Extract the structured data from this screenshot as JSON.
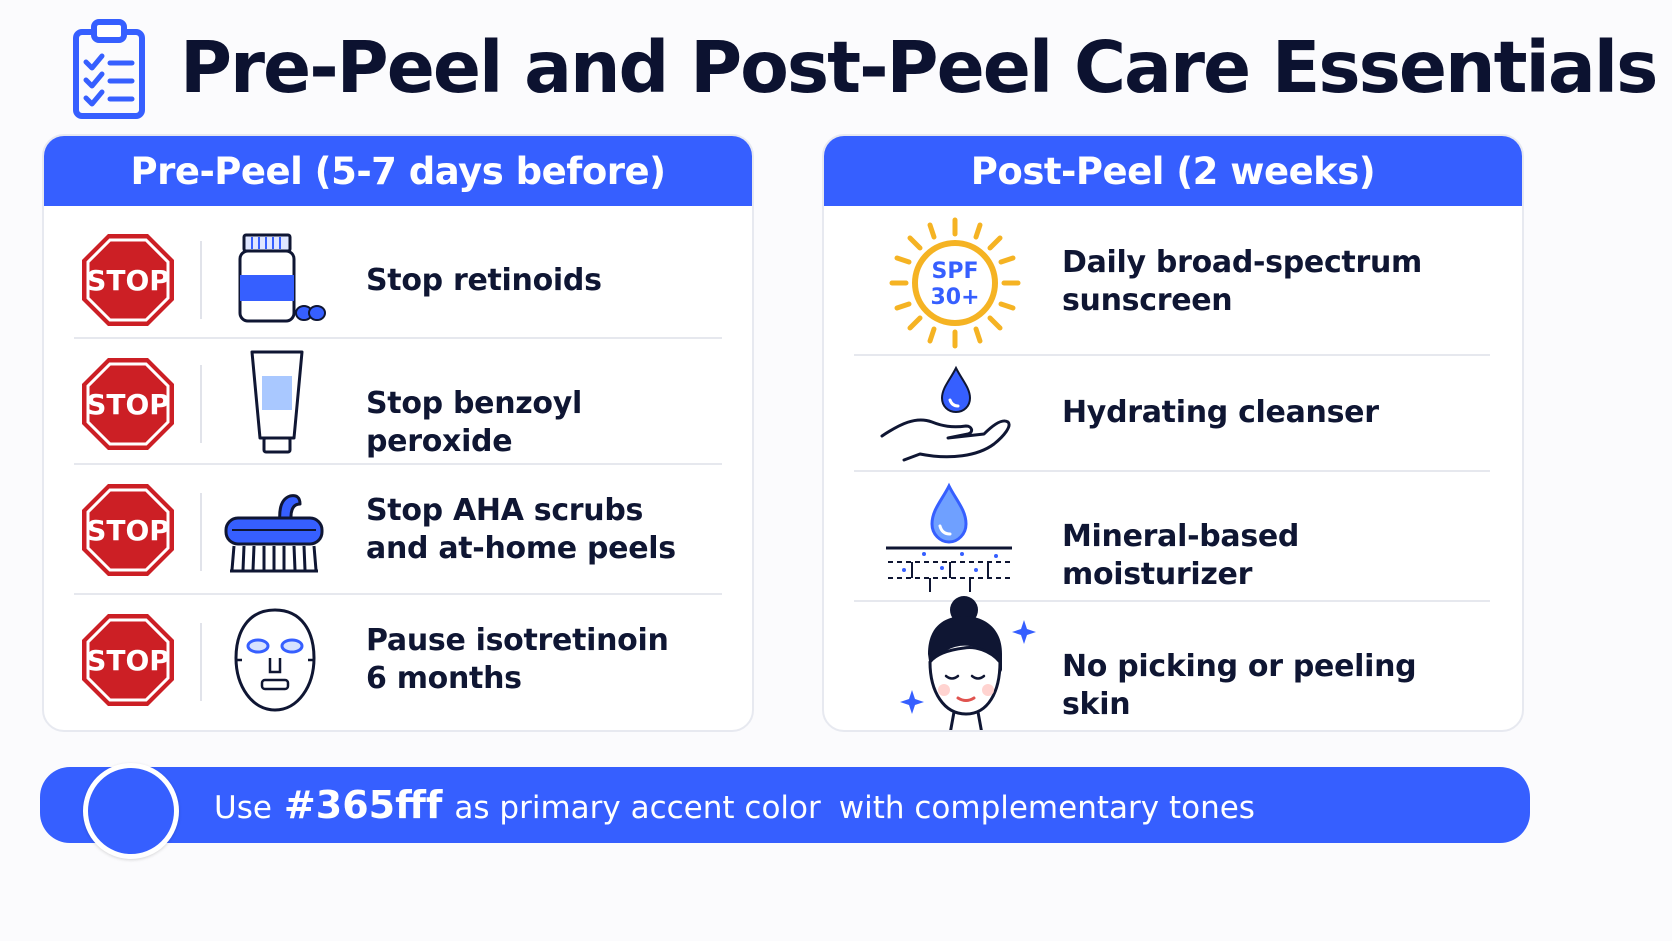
{
  "header": {
    "title": "Pre-Peel and Post-Peel Care Essentials",
    "icon": "clipboard-checklist-icon"
  },
  "colors": {
    "accent": "#365fff",
    "stop_red": "#cc1f25",
    "sun": "#f5b323",
    "text": "#0f1633"
  },
  "pre_peel": {
    "heading": "Pre-Peel (5-7 days before)",
    "stop_label": "STOP",
    "items": [
      {
        "line1": "Stop retinoids",
        "line2": "",
        "icon": "pill-bottle-icon"
      },
      {
        "line1": "Stop benzoyl peroxide",
        "line2": "",
        "icon": "cream-tube-icon"
      },
      {
        "line1": "Stop AHA scrubs",
        "line2": "and at-home peels",
        "icon": "scrub-brush-icon"
      },
      {
        "line1": "Pause isotretinoin",
        "line2": "6 months",
        "icon": "face-mask-icon"
      }
    ]
  },
  "post_peel": {
    "heading": "Post-Peel (2 weeks)",
    "spf_line1": "SPF",
    "spf_line2": "30+",
    "items": [
      {
        "line1": "Daily broad-spectrum",
        "line2": "sunscreen",
        "icon": "sun-spf-icon"
      },
      {
        "line1": "Hydrating cleanser",
        "line2": "",
        "icon": "hand-water-drop-icon"
      },
      {
        "line1": "Mineral-based moisturizer",
        "line2": "",
        "icon": "skin-barrier-drop-icon"
      },
      {
        "line1": "No picking or peeling skin",
        "line2": "",
        "icon": "woman-face-icon"
      }
    ]
  },
  "footer": {
    "prefix": "Use",
    "hex": "#365fff",
    "middle": "as primary accent color",
    "suffix": "with complementary tones"
  }
}
